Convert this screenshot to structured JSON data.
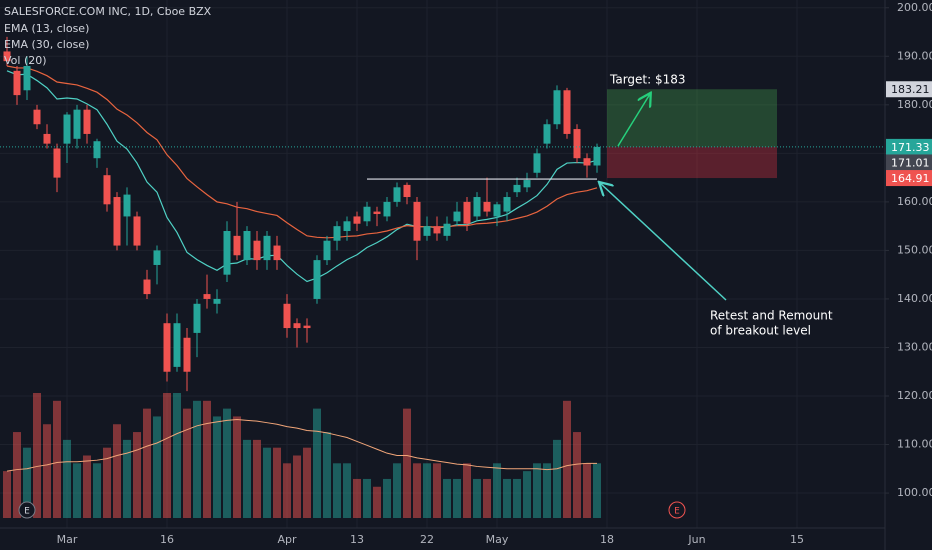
{
  "chart_data": {
    "type": "candlestick",
    "title": "SALESFORCE.COM INC, 1D, Cboe BZX",
    "x": [
      "Feb 21",
      "Feb 24",
      "Feb 25",
      "Feb 26",
      "Feb 27",
      "Feb 28",
      "Mar 2",
      "Mar 3",
      "Mar 4",
      "Mar 5",
      "Mar 6",
      "Mar 9",
      "Mar 10",
      "Mar 11",
      "Mar 12",
      "Mar 13",
      "Mar 16",
      "Mar 17",
      "Mar 18",
      "Mar 19",
      "Mar 20",
      "Mar 23",
      "Mar 24",
      "Mar 25",
      "Mar 26",
      "Mar 27",
      "Mar 30",
      "Mar 31",
      "Apr 1",
      "Apr 2",
      "Apr 3",
      "Apr 6",
      "Apr 7",
      "Apr 8",
      "Apr 9",
      "Apr 13",
      "Apr 14",
      "Apr 15",
      "Apr 16",
      "Apr 17",
      "Apr 20",
      "Apr 21",
      "Apr 22",
      "Apr 23",
      "Apr 24",
      "Apr 27",
      "Apr 28",
      "Apr 29",
      "Apr 30",
      "May 1",
      "May 4",
      "May 5",
      "May 6",
      "May 7",
      "May 8",
      "May 11",
      "May 12",
      "May 13",
      "May 14",
      "May 15",
      "May 18",
      "May 19",
      "May 20",
      "May 21",
      "May 22",
      "May 26",
      "May 27",
      "May 28",
      "May 29",
      "Jun 1",
      "Jun 2",
      "Jun 3",
      "Jun 4",
      "Jun 5",
      "Jun 8",
      "Jun 9",
      "Jun 10",
      "Jun 11",
      "Jun 12",
      "Jun 15",
      "Jun 16",
      "Jun 17",
      "Jun 18",
      "Jun 19",
      "Jun 22",
      "Jun 23",
      "Jun 24",
      "Jun 25"
    ],
    "open": [
      191,
      187,
      183,
      179,
      174,
      171,
      172,
      173,
      179,
      169,
      165.5,
      161,
      157,
      157,
      144,
      147,
      135,
      126,
      132,
      133,
      141,
      139,
      145,
      153,
      148,
      152,
      148,
      151,
      139,
      135,
      134.5,
      140,
      148,
      152,
      154,
      157,
      156,
      158,
      157,
      160,
      163.5,
      160,
      153,
      155,
      153,
      156,
      160,
      157,
      160,
      157,
      158,
      162,
      163,
      166,
      172,
      176,
      183,
      175,
      169,
      167.5,
      null,
      null,
      null,
      null,
      null,
      null,
      null,
      null,
      null,
      null,
      null,
      null,
      null,
      null,
      null,
      null,
      null,
      null,
      null,
      null,
      null,
      null,
      null,
      null,
      null,
      null,
      null,
      null
    ],
    "high": [
      194,
      188,
      190,
      180,
      176,
      172,
      178.5,
      180,
      180,
      173,
      167,
      162,
      163,
      158,
      146,
      151,
      137,
      137,
      134,
      140,
      145,
      142,
      156,
      160,
      155,
      154,
      154,
      153,
      141,
      136,
      136,
      149,
      153,
      156,
      157,
      158,
      160,
      159,
      161,
      164,
      164,
      161,
      157,
      157,
      157,
      160,
      161,
      162,
      165,
      160,
      162,
      165,
      166,
      171,
      177,
      184,
      183.5,
      176,
      170,
      172,
      null,
      null,
      null,
      null,
      null,
      null,
      null,
      null,
      null,
      null,
      null,
      null,
      null,
      null,
      null,
      null,
      null,
      null,
      null,
      null,
      null,
      null,
      null,
      null,
      null,
      null,
      null,
      null
    ],
    "low": [
      188,
      180,
      181,
      175,
      171,
      162,
      168,
      171,
      172,
      167,
      158,
      150,
      151,
      150,
      140,
      143,
      123,
      125,
      121,
      128,
      138,
      137,
      143.5,
      148,
      147,
      146,
      146,
      146,
      132,
      130,
      131,
      139,
      147,
      150,
      152,
      154,
      155,
      155,
      156,
      159,
      159.5,
      148,
      152,
      152,
      152,
      155,
      154,
      156,
      157,
      155,
      156,
      161,
      162,
      165,
      171,
      175,
      173,
      168,
      165,
      166,
      null,
      null,
      null,
      null,
      null,
      null,
      null,
      null,
      null,
      null,
      null,
      null,
      null,
      null,
      null,
      null,
      null,
      null,
      null,
      null,
      null,
      null,
      null,
      null,
      null,
      null,
      null,
      null
    ],
    "close": [
      189,
      182,
      188,
      176,
      172,
      165,
      178,
      179,
      174,
      172.5,
      159.5,
      151,
      161.5,
      151,
      141,
      150,
      125,
      135,
      125,
      139,
      140,
      140,
      154,
      149,
      154,
      148,
      153,
      148,
      134,
      134,
      134,
      148,
      152,
      155,
      156,
      155.5,
      159,
      157.5,
      160,
      163,
      161,
      152,
      155,
      153.5,
      155.5,
      158,
      155.5,
      161,
      158,
      159.5,
      161,
      163.5,
      164.5,
      170,
      176,
      183,
      174,
      169,
      167.5,
      171.33,
      null,
      null,
      null,
      null,
      null,
      null,
      null,
      null,
      null,
      null,
      null,
      null,
      null,
      null,
      null,
      null,
      null,
      null,
      null,
      null,
      null,
      null,
      null,
      null,
      null,
      null,
      null,
      null
    ],
    "up_color": "#26a69a",
    "down_color": "#ef5350",
    "series": [
      {
        "name": "EMA (13, close)",
        "color": "#4fd1c5",
        "values": [
          187,
          186.2,
          186.3,
          185,
          183.5,
          181.2,
          181.4,
          181.2,
          180.2,
          179,
          176,
          172.5,
          170.9,
          168,
          164.1,
          162,
          156.8,
          153.7,
          149.6,
          148.1,
          146.9,
          145.9,
          147.2,
          147.4,
          148.3,
          148.2,
          148.9,
          149,
          146.9,
          145.1,
          143.6,
          144.3,
          145.4,
          146.8,
          148.1,
          149.1,
          150.6,
          151.6,
          152.8,
          154.3,
          155.4,
          154.9,
          154.9,
          154.7,
          154.8,
          155.3,
          155.3,
          156.1,
          156.4,
          156.8,
          157.4,
          158.7,
          159.9,
          161.3,
          163.6,
          166.7,
          168,
          168.1,
          168,
          168.6,
          null,
          null,
          null,
          null,
          null,
          null,
          null,
          null,
          null,
          null,
          null,
          null,
          null,
          null,
          null,
          null,
          null,
          null,
          null,
          null,
          null,
          null,
          null,
          null,
          null,
          null,
          null,
          null
        ]
      },
      {
        "name": "EMA (30, close)",
        "color": "#e8643f",
        "values": [
          188,
          187.6,
          187.6,
          186.9,
          186,
          184.7,
          184.4,
          184.1,
          183.4,
          182.6,
          181.1,
          179.1,
          177.9,
          176.3,
          174.3,
          172.8,
          169.7,
          167.5,
          164.8,
          163.1,
          161.5,
          160,
          159.6,
          158.9,
          158.6,
          158,
          157.6,
          157.2,
          155.7,
          154.3,
          153,
          152.7,
          152.6,
          152.7,
          152.9,
          153,
          153.4,
          153.6,
          154,
          154.6,
          155.1,
          154.9,
          154.9,
          154.8,
          154.9,
          155.1,
          155.1,
          155.5,
          155.6,
          155.8,
          156.1,
          156.6,
          157.1,
          157.9,
          159.1,
          160.6,
          161.5,
          162,
          162.3,
          162.9,
          null,
          null,
          null,
          null,
          null,
          null,
          null,
          null,
          null,
          null,
          null,
          null,
          null,
          null,
          null,
          null,
          null,
          null,
          null,
          null,
          null,
          null,
          null,
          null,
          null,
          null,
          null,
          null
        ]
      }
    ],
    "volume": {
      "name": "Vol (20)",
      "ma_color": "#f2a679",
      "values": [
        6,
        11,
        9,
        16,
        12,
        15,
        10,
        7,
        8,
        7,
        9,
        12,
        10,
        11,
        14,
        13,
        16,
        16,
        14,
        15,
        15,
        13,
        14,
        13,
        10,
        10,
        9,
        9,
        7,
        8,
        9,
        14,
        11,
        7,
        7,
        5,
        5,
        4,
        5,
        7,
        14,
        7,
        7,
        7,
        5,
        5,
        7,
        5,
        5,
        7,
        5,
        5,
        6,
        7,
        7,
        10,
        15,
        11,
        7,
        7,
        null,
        null,
        null,
        null,
        null,
        null,
        null,
        null,
        null,
        null,
        null,
        null,
        null,
        null,
        null,
        null,
        null,
        null,
        null,
        null,
        null,
        null,
        null,
        null,
        null,
        null,
        null,
        null
      ],
      "ma": [
        6,
        6.2,
        6.3,
        6.6,
        6.8,
        7.1,
        7.2,
        7.2,
        7.3,
        7.4,
        7.6,
        8,
        8.3,
        8.7,
        9.2,
        9.6,
        10.2,
        10.8,
        11.3,
        11.8,
        12.1,
        12.3,
        12.5,
        12.6,
        12.5,
        12.4,
        12.2,
        12,
        11.7,
        11.5,
        11.2,
        11.1,
        10.9,
        10.6,
        10.3,
        9.8,
        9.3,
        8.8,
        8.3,
        8,
        8,
        7.7,
        7.5,
        7.3,
        7.1,
        6.9,
        6.8,
        6.6,
        6.5,
        6.4,
        6.3,
        6.3,
        6.3,
        6.3,
        6.2,
        6.3,
        6.7,
        6.9,
        7,
        7,
        null,
        null,
        null,
        null,
        null,
        null,
        null,
        null,
        null,
        null,
        null,
        null,
        null,
        null,
        null,
        null,
        null,
        null,
        null,
        null,
        null,
        null,
        null,
        null,
        null,
        null,
        null,
        null
      ]
    },
    "ylim": [
      92.8,
      201.6
    ],
    "yticks": [
      {
        "value": 100,
        "label": "100.00"
      },
      {
        "value": 110,
        "label": "110.00"
      },
      {
        "value": 120,
        "label": "120.00"
      },
      {
        "value": 130,
        "label": "130.00"
      },
      {
        "value": 140,
        "label": "140.00"
      },
      {
        "value": 150,
        "label": "150.00"
      },
      {
        "value": 160,
        "label": "160.00"
      },
      {
        "value": 170,
        "label": "170.00"
      },
      {
        "value": 180,
        "label": "180.00"
      },
      {
        "value": 190,
        "label": "190.00"
      },
      {
        "value": 200,
        "label": "200.00"
      }
    ],
    "xticks": [
      {
        "value": "Mar 2",
        "label": "Mar"
      },
      {
        "value": "Mar 16",
        "label": "16"
      },
      {
        "value": "Apr 1",
        "label": "Apr"
      },
      {
        "value": "Apr 13",
        "label": "13"
      },
      {
        "value": "Apr 22",
        "label": "22"
      },
      {
        "value": "May 1",
        "label": "May"
      },
      {
        "value": "May 18",
        "label": "18"
      },
      {
        "value": "Jun 1",
        "label": "Jun"
      },
      {
        "value": "Jun 15",
        "label": "15"
      }
    ],
    "grid": true,
    "position": {
      "start": "May 18",
      "end": "Jun 11",
      "target": 183.21,
      "entry": 171.33,
      "stop": 164.91
    },
    "marker_price": 171.01,
    "breakout_level": {
      "value": 164.7,
      "start": "Apr 14",
      "end": "May 15"
    },
    "earnings": [
      {
        "date": "Feb 25",
        "label": "E"
      },
      {
        "date": "May 28",
        "label": "E"
      }
    ],
    "annotations": {
      "target": "Target: $183",
      "retest": [
        "Retest and Remount",
        "of breakout level"
      ]
    }
  }
}
